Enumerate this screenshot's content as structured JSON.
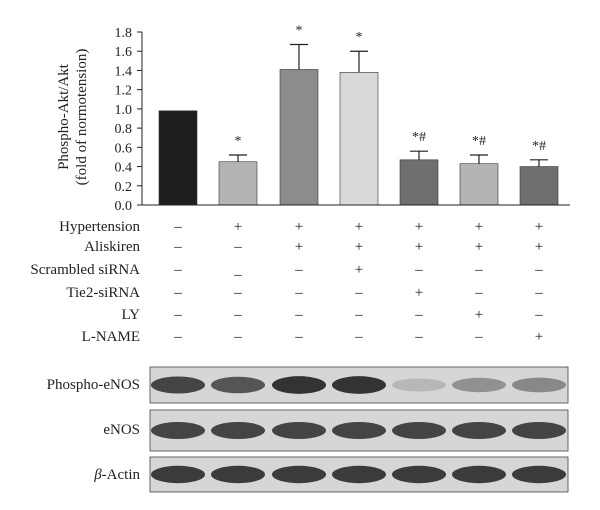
{
  "chart_data": {
    "type": "bar",
    "ylabel_line1": "Phospho-Akt/Akt",
    "ylabel_line2": "(fold of normotension)",
    "ylim": [
      0,
      1.8
    ],
    "yticks": [
      "0.0",
      "0.2",
      "0.4",
      "0.6",
      "0.8",
      "1.0",
      "1.2",
      "1.4",
      "1.6",
      "1.8"
    ],
    "grid": false,
    "values": [
      0.98,
      0.45,
      1.41,
      1.38,
      0.47,
      0.43,
      0.4
    ],
    "errors": [
      0.0,
      0.07,
      0.26,
      0.22,
      0.09,
      0.09,
      0.07
    ],
    "annotations": [
      "",
      "*",
      "*",
      "*",
      "*#",
      "*#",
      "*#"
    ],
    "bar_colors": [
      "#1e1e1e",
      "#b4b4b4",
      "#8c8c8c",
      "#d9d9d9",
      "#6f6f6f",
      "#b4b4b4",
      "#6f6f6f"
    ]
  },
  "treatment_table": {
    "rows": [
      {
        "label": "Hypertension",
        "marks": [
          "–",
          "+",
          "+",
          "+",
          "+",
          "+",
          "+"
        ]
      },
      {
        "label": "Aliskiren",
        "marks": [
          "–",
          "–",
          "+",
          "+",
          "+",
          "+",
          "+"
        ]
      },
      {
        "label": "Scrambled siRNA",
        "marks": [
          "–",
          "_",
          "–",
          "+",
          "–",
          "–",
          "–"
        ]
      },
      {
        "label": "Tie2-siRNA",
        "marks": [
          "–",
          "–",
          "–",
          "–",
          "+",
          "–",
          "–"
        ]
      },
      {
        "label": "LY",
        "marks": [
          "–",
          "–",
          "–",
          "–",
          "–",
          "+",
          "–"
        ]
      },
      {
        "label": "L-NAME",
        "marks": [
          "–",
          "–",
          "–",
          "–",
          "–",
          "–",
          "+"
        ]
      }
    ]
  },
  "blots": [
    {
      "label": "Phospho-eNOS",
      "intensity": [
        0.85,
        0.75,
        0.95,
        0.95,
        0.18,
        0.4,
        0.45
      ]
    },
    {
      "label": "eNOS",
      "intensity": [
        0.85,
        0.85,
        0.85,
        0.85,
        0.85,
        0.85,
        0.85
      ]
    },
    {
      "label_prefix": "β",
      "label_suffix": "-Actin",
      "intensity": [
        0.9,
        0.9,
        0.9,
        0.9,
        0.9,
        0.9,
        0.9
      ]
    }
  ]
}
